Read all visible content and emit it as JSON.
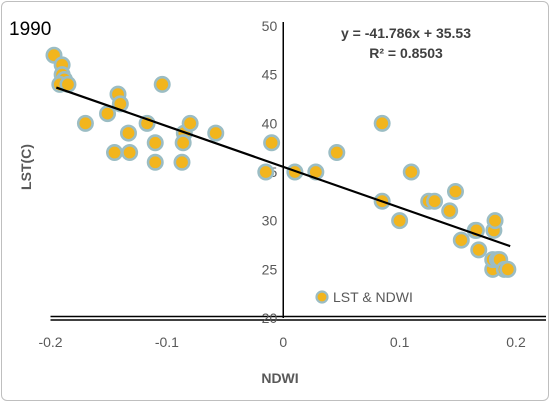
{
  "chart_data": {
    "type": "scatter",
    "title": "1990",
    "xlabel": "NDWI",
    "ylabel": "LST(C)",
    "xlim": [
      -0.2,
      0.2
    ],
    "ylim": [
      20,
      50
    ],
    "x_ticks": [
      "-0.2",
      "-0.1",
      "0",
      "0.1",
      "0.2"
    ],
    "y_ticks": [
      "20",
      "25",
      "30",
      "35",
      "40",
      "45",
      "50"
    ],
    "legend": "LST & NDWI",
    "legend_position": "bottom-center",
    "equation": "y = -41.786x + 35.53",
    "r_squared": "R² = 0.8503",
    "trendline": {
      "slope": -41.786,
      "intercept": 35.53,
      "x_range": [
        -0.195,
        0.195
      ]
    },
    "marker_fill": "#f2b51d",
    "marker_ring": "#9bbdc4",
    "trendline_color": "#000000",
    "series": [
      {
        "name": "LST & NDWI",
        "points": [
          [
            -0.197,
            47
          ],
          [
            -0.19,
            46
          ],
          [
            -0.19,
            45
          ],
          [
            -0.188,
            44.5
          ],
          [
            -0.192,
            44
          ],
          [
            -0.185,
            44
          ],
          [
            -0.17,
            40
          ],
          [
            -0.151,
            41
          ],
          [
            -0.142,
            43
          ],
          [
            -0.14,
            42
          ],
          [
            -0.145,
            37
          ],
          [
            -0.132,
            37
          ],
          [
            -0.133,
            39
          ],
          [
            -0.117,
            40
          ],
          [
            -0.11,
            38
          ],
          [
            -0.11,
            36
          ],
          [
            -0.104,
            44
          ],
          [
            -0.085,
            39
          ],
          [
            -0.086,
            38
          ],
          [
            -0.08,
            40
          ],
          [
            -0.087,
            36
          ],
          [
            -0.058,
            39
          ],
          [
            -0.015,
            35
          ],
          [
            -0.01,
            38
          ],
          [
            0.01,
            35
          ],
          [
            0.028,
            35
          ],
          [
            0.046,
            37
          ],
          [
            0.085,
            40
          ],
          [
            0.085,
            32
          ],
          [
            0.1,
            30
          ],
          [
            0.11,
            35
          ],
          [
            0.125,
            32
          ],
          [
            0.13,
            32
          ],
          [
            0.143,
            31
          ],
          [
            0.148,
            33
          ],
          [
            0.153,
            28
          ],
          [
            0.165,
            29
          ],
          [
            0.166,
            29
          ],
          [
            0.168,
            27
          ],
          [
            0.18,
            25
          ],
          [
            0.181,
            29
          ],
          [
            0.182,
            30
          ],
          [
            0.18,
            26
          ],
          [
            0.184,
            26
          ],
          [
            0.186,
            26
          ],
          [
            0.19,
            25
          ],
          [
            0.193,
            25
          ]
        ]
      }
    ]
  }
}
